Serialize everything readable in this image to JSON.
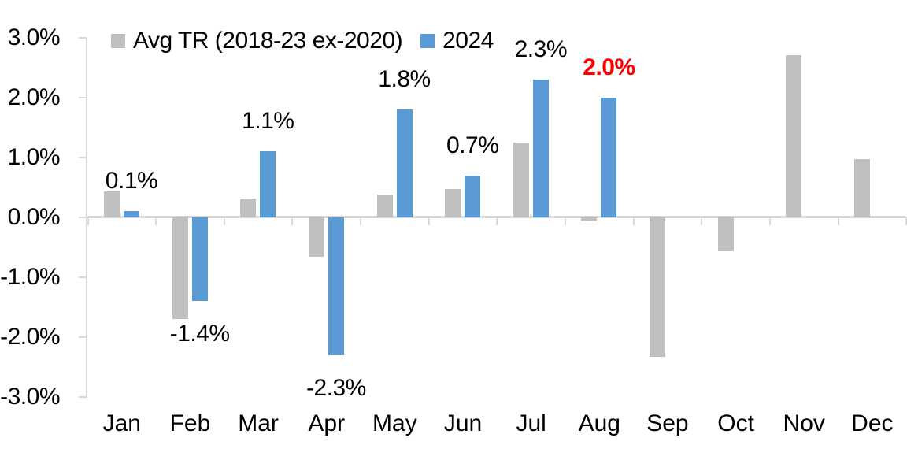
{
  "chart_data": {
    "type": "bar",
    "title": "",
    "categories": [
      "Jan",
      "Feb",
      "Mar",
      "Apr",
      "May",
      "Jun",
      "Jul",
      "Aug",
      "Sep",
      "Oct",
      "Nov",
      "Dec"
    ],
    "series": [
      {
        "name": "Avg TR (2018-23 ex-2020)",
        "color": "#BFBFBF",
        "values": [
          0.43,
          -1.7,
          0.31,
          -0.66,
          0.38,
          0.47,
          1.25,
          -0.07,
          -2.33,
          -0.56,
          2.71,
          0.97
        ]
      },
      {
        "name": "2024",
        "color": "#5B9BD5",
        "values": [
          0.1,
          -1.4,
          1.1,
          -2.3,
          1.8,
          0.7,
          2.3,
          2.0,
          null,
          null,
          null,
          null
        ]
      }
    ],
    "data_labels": [
      {
        "category": "Jan",
        "series": "2024",
        "text": "0.1%",
        "color": "#000000",
        "bold": false
      },
      {
        "category": "Feb",
        "series": "2024",
        "text": "-1.4%",
        "color": "#000000",
        "bold": false
      },
      {
        "category": "Mar",
        "series": "2024",
        "text": "1.1%",
        "color": "#000000",
        "bold": false
      },
      {
        "category": "Apr",
        "series": "2024",
        "text": "-2.3%",
        "color": "#000000",
        "bold": false
      },
      {
        "category": "May",
        "series": "2024",
        "text": "1.8%",
        "color": "#000000",
        "bold": false
      },
      {
        "category": "Jun",
        "series": "2024",
        "text": "0.7%",
        "color": "#000000",
        "bold": false
      },
      {
        "category": "Jul",
        "series": "2024",
        "text": "2.3%",
        "color": "#000000",
        "bold": false
      },
      {
        "category": "Aug",
        "series": "2024",
        "text": "2.0%",
        "color": "#FF0000",
        "bold": true
      }
    ],
    "ylim": [
      -3,
      3
    ],
    "ytick_step": 1,
    "ytick_labels": [
      "3.0%",
      "2.0%",
      "1.0%",
      "0.0%",
      "-1.0%",
      "-2.0%",
      "-3.0%"
    ],
    "xlabel": "",
    "ylabel": "",
    "legend_position": "top",
    "grid": false,
    "axis_color": "#D9D9D9",
    "text_color": "#000000"
  }
}
